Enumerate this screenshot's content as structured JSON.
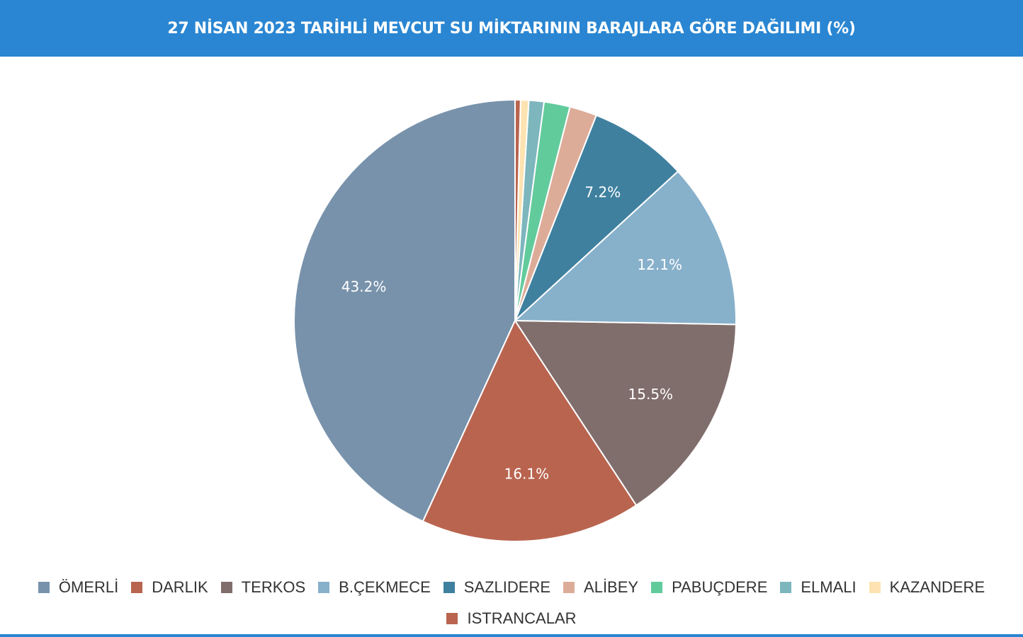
{
  "header": {
    "title": "27 NİSAN 2023 TARİHLİ MEVCUT SU MİKTARININ BARAJLARA GÖRE DAĞILIMI (%)"
  },
  "chart_data": {
    "type": "pie",
    "title": "27 NİSAN 2023 TARİHLİ MEVCUT SU MİKTARININ BARAJLARA GÖRE DAĞILIMI (%)",
    "legend_position": "bottom",
    "slices": [
      {
        "name": "ÖMERLİ",
        "value": 43.2,
        "label": "43.2%",
        "color": "#7892ab"
      },
      {
        "name": "DARLIK",
        "value": 16.1,
        "label": "16.1%",
        "color": "#b9644f"
      },
      {
        "name": "TERKOS",
        "value": 15.5,
        "label": "15.5%",
        "color": "#806e6c"
      },
      {
        "name": "B.ÇEKMECE",
        "value": 12.1,
        "label": "12.1%",
        "color": "#87b0cb"
      },
      {
        "name": "SAZLIDERE",
        "value": 7.2,
        "label": "7.2%",
        "color": "#3f809f"
      },
      {
        "name": "ALİBEY",
        "value": 2.0,
        "label": "",
        "color": "#ddac99"
      },
      {
        "name": "PABUÇDERE",
        "value": 1.9,
        "label": "",
        "color": "#62cb9c"
      },
      {
        "name": "ELMALI",
        "value": 1.1,
        "label": "",
        "color": "#7db6bd"
      },
      {
        "name": "KAZANDERE",
        "value": 0.6,
        "label": "",
        "color": "#fde3b1"
      },
      {
        "name": "ISTRANCALAR",
        "value": 0.4,
        "label": "",
        "color": "#b9644f"
      }
    ]
  }
}
